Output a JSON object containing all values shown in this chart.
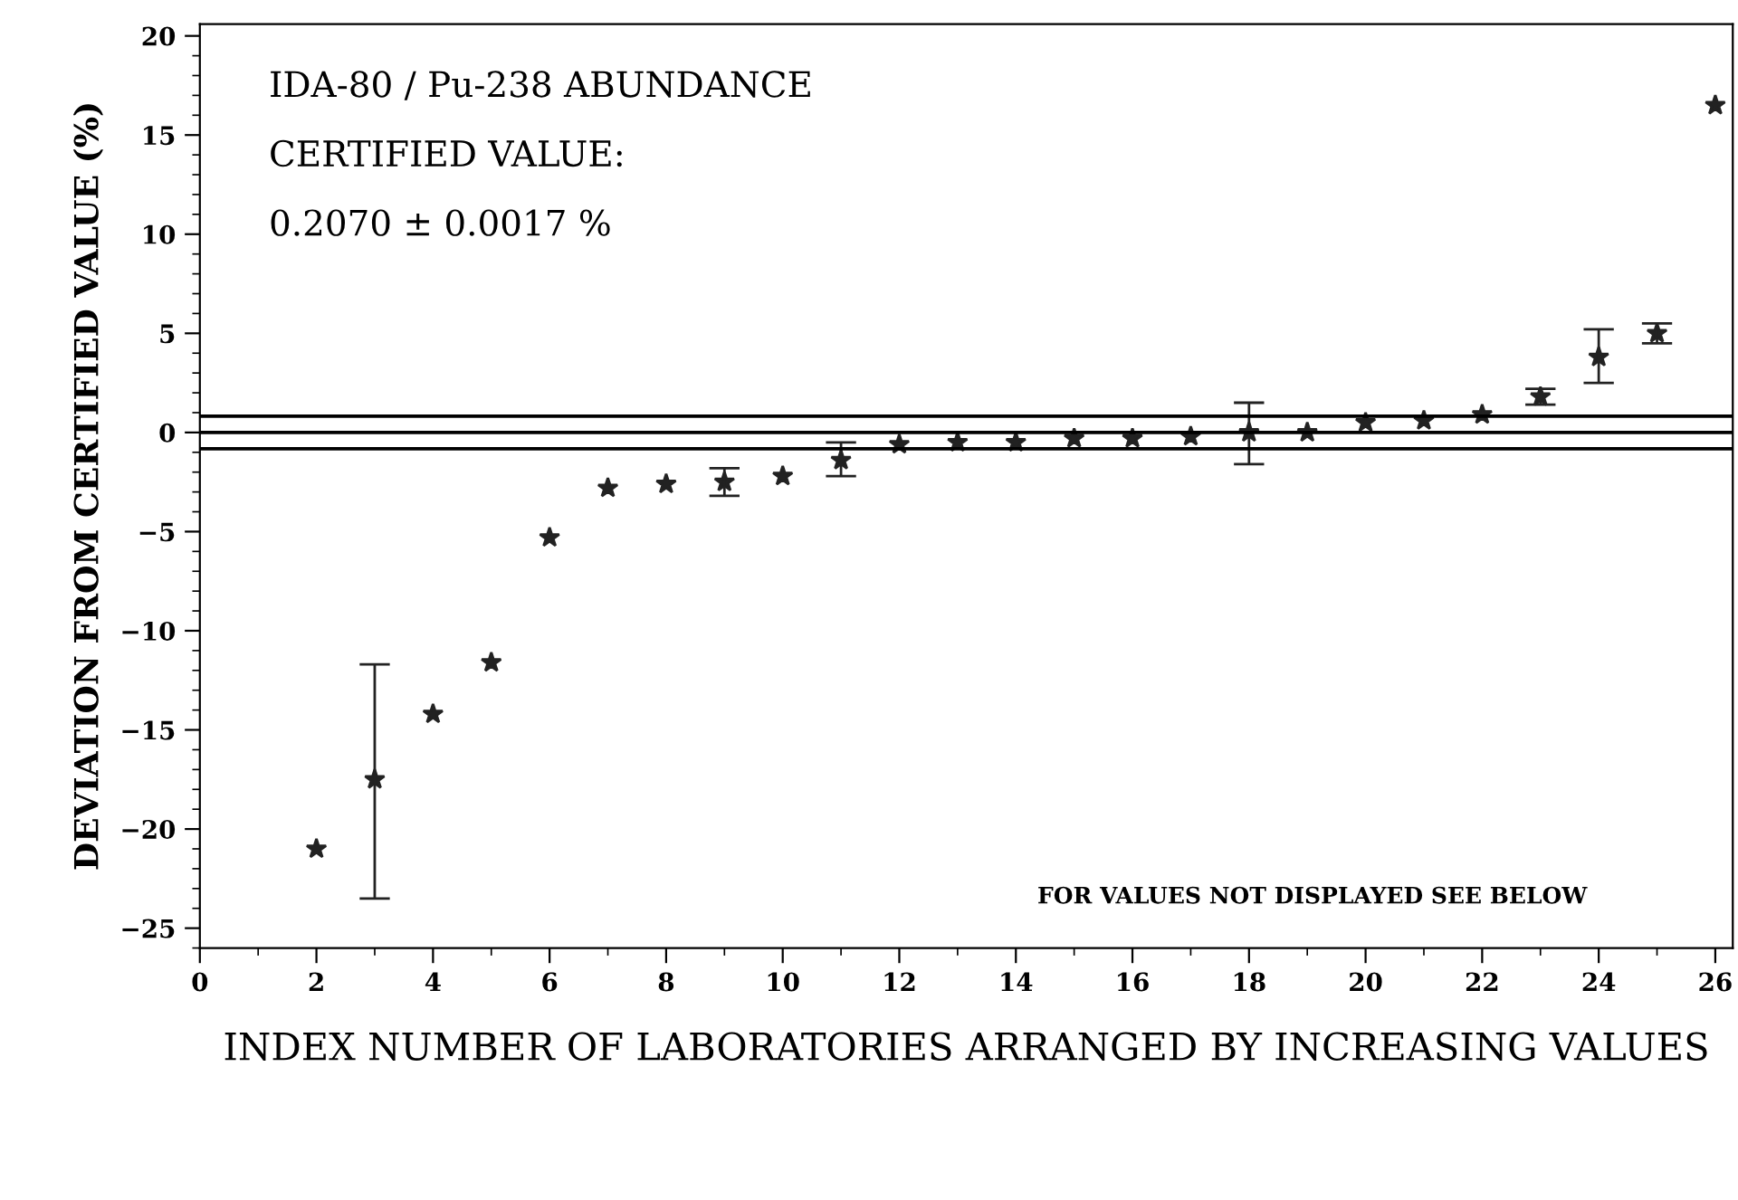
{
  "chart_data": {
    "type": "scatter",
    "xlabel": "INDEX NUMBER OF LABORATORIES ARRANGED BY INCREASING VALUES",
    "ylabel": "DEVIATION FROM CERTIFIED VALUE (%)",
    "x": [
      2,
      3,
      4,
      5,
      6,
      7,
      8,
      9,
      10,
      11,
      12,
      13,
      14,
      15,
      16,
      17,
      18,
      19,
      20,
      21,
      22,
      23,
      24,
      25,
      26
    ],
    "values": [
      -21,
      -17.5,
      -14.2,
      -11.6,
      -5.3,
      -2.8,
      -2.6,
      -2.5,
      -2.2,
      -1.4,
      -0.6,
      -0.5,
      -0.5,
      -0.3,
      -0.3,
      -0.2,
      0.0,
      0.0,
      0.5,
      0.6,
      0.9,
      1.8,
      3.8,
      5.0,
      16.5
    ],
    "errors": [
      null,
      [
        -23.5,
        -11.7
      ],
      null,
      null,
      null,
      null,
      null,
      [
        -3.2,
        -1.8
      ],
      null,
      [
        -2.2,
        -0.5
      ],
      null,
      null,
      null,
      null,
      null,
      null,
      [
        -1.6,
        1.5
      ],
      null,
      null,
      null,
      null,
      [
        1.4,
        2.2
      ],
      [
        2.5,
        5.2
      ],
      [
        4.5,
        5.5
      ],
      null
    ],
    "color": "#222222",
    "marker": "star",
    "xlim": [
      0,
      26.3
    ],
    "xticks": [
      0,
      2,
      4,
      6,
      8,
      10,
      12,
      14,
      16,
      18,
      20,
      22,
      24,
      26
    ],
    "ylim": [
      -26,
      20.6
    ],
    "yticks": [
      -25,
      -20,
      -15,
      -10,
      -5,
      0,
      5,
      10,
      15,
      20
    ],
    "ref_lines": [
      {
        "axis": "y",
        "value": 0.82
      },
      {
        "axis": "y",
        "value": 0
      },
      {
        "axis": "y",
        "value": -0.82
      }
    ],
    "grid": false,
    "annotations": [
      "IDA-80 / Pu-238 ABUNDANCE",
      "CERTIFIED VALUE:",
      "0.2070 ± 0.0017 %",
      "FOR VALUES NOT DISPLAYED SEE BELOW"
    ]
  }
}
